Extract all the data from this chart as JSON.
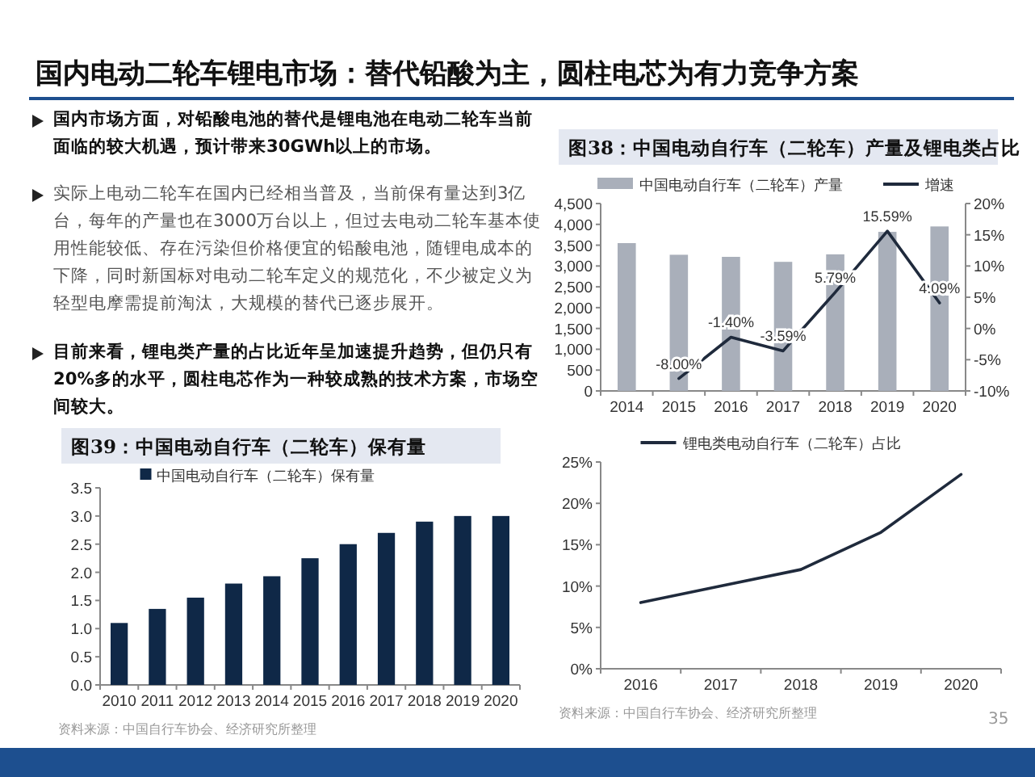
{
  "chart_data": [
    {
      "type": "other",
      "title": "国内电动二轮车锂电市场：替代铅酸为主，圆柱电芯为有力竞争方案",
      "annotations": [
        "国内市场方面，对铅酸电池的替代是锂电池在电动二轮车当前面临的较大机遇，预计带来30GWh以上的市场。",
        "实际上电动二轮车在国内已经相当普及，当前保有量达到3亿台，每年的产量也在3000万台以上，但过去电动二轮车基本使用性能较低、存在污染但价格便宜的铅酸电池，随锂电成本的下降，同时新国标对电动二轮车定义的规范化，不少被定义为轻型电摩需提前淘汰，大规模的替代已逐步展开。",
        "目前来看，锂电类产量的占比近年呈加速提升趋势，但仍只有20%多的水平，圆柱电芯作为一种较成熟的技术方案，市场空间较大。",
        "35"
      ]
    },
    {
      "type": "bar",
      "title": "图38：中国电动自行车（二轮车）产量及锂电类占比",
      "categories": [
        "2014",
        "2015",
        "2016",
        "2017",
        "2018",
        "2019",
        "2020"
      ],
      "series": [
        {
          "name": "中国电动自行车（二轮车）产量",
          "color": "#a9afba",
          "values": [
            3550,
            3270,
            3220,
            3100,
            3280,
            3820,
            3950
          ]
        },
        {
          "name": "增速",
          "type": "line",
          "axis": "y2",
          "color": "#1f2a3c",
          "values": [
            null,
            -8.0,
            -1.4,
            -3.59,
            5.79,
            15.59,
            4.09
          ],
          "value_labels": [
            null,
            "-8.00%",
            "-1.40%",
            "-3.59%",
            "5.79%",
            "15.59%",
            "4.09%"
          ]
        }
      ],
      "ylim": [
        0,
        4500
      ],
      "yticks": [
        0,
        {
          "value": 500,
          "label": "500"
        },
        {
          "value": 1000,
          "label": "1,000"
        },
        {
          "value": 1500,
          "label": "1,500"
        },
        {
          "value": 2000,
          "label": "2,000"
        },
        {
          "value": 2500,
          "label": "2,500"
        },
        {
          "value": 3000,
          "label": "3,000"
        },
        {
          "value": 3500,
          "label": "3,500"
        },
        {
          "value": 4000,
          "label": "4,000"
        },
        {
          "value": 4500,
          "label": "4,500"
        }
      ],
      "y2lim": [
        -10,
        20
      ],
      "y2ticks": [
        {
          "value": -10,
          "label": "-10%"
        },
        {
          "value": -5,
          "label": "-5%"
        },
        {
          "value": 0,
          "label": "0%"
        },
        {
          "value": 5,
          "label": "5%"
        },
        {
          "value": 10,
          "label": "10%"
        },
        {
          "value": 15,
          "label": "15%"
        },
        {
          "value": 20,
          "label": "20%"
        }
      ],
      "legend": "top",
      "grid": false
    },
    {
      "type": "bar",
      "title": "图39：中国电动自行车（二轮车）保有量",
      "categories": [
        "2010",
        "2011",
        "2012",
        "2013",
        "2014",
        "2015",
        "2016",
        "2017",
        "2018",
        "2019",
        "2020"
      ],
      "series": [
        {
          "name": "中国电动自行车（二轮车）保有量",
          "color": "#0f2847",
          "values": [
            1.1,
            1.35,
            1.55,
            1.8,
            1.93,
            2.25,
            2.5,
            2.7,
            2.9,
            3.0,
            3.0
          ]
        }
      ],
      "ylim": [
        0,
        3.5
      ],
      "yticks": [
        {
          "value": 0,
          "label": "0.0"
        },
        {
          "value": 0.5,
          "label": "0.5"
        },
        {
          "value": 1,
          "label": "1.0"
        },
        {
          "value": 1.5,
          "label": "1.5"
        },
        {
          "value": 2,
          "label": "2.0"
        },
        {
          "value": 2.5,
          "label": "2.5"
        },
        {
          "value": 3,
          "label": "3.0"
        },
        {
          "value": 3.5,
          "label": "3.5"
        }
      ],
      "legend": "top",
      "grid": false,
      "annotations": [
        "资料来源：中国自行车协会、经济研究所整理"
      ]
    },
    {
      "type": "line",
      "categories": [
        "2016",
        "2017",
        "2018",
        "2019",
        "2020"
      ],
      "series": [
        {
          "name": "锂电类电动自行车（二轮车）占比",
          "color": "#1f2a3c",
          "values": [
            8,
            10,
            12,
            16.5,
            23.5
          ]
        }
      ],
      "ylim": [
        0,
        25
      ],
      "yticks": [
        {
          "value": 0,
          "label": "0%"
        },
        {
          "value": 5,
          "label": "5%"
        },
        {
          "value": 10,
          "label": "10%"
        },
        {
          "value": 15,
          "label": "15%"
        },
        {
          "value": 20,
          "label": "20%"
        },
        {
          "value": 25,
          "label": "25%"
        }
      ],
      "legend": "top",
      "grid": false,
      "marker": "none",
      "line_style": "solid",
      "annotations": [
        "资料来源：中国自行车协会、经济研究所整理"
      ]
    }
  ]
}
